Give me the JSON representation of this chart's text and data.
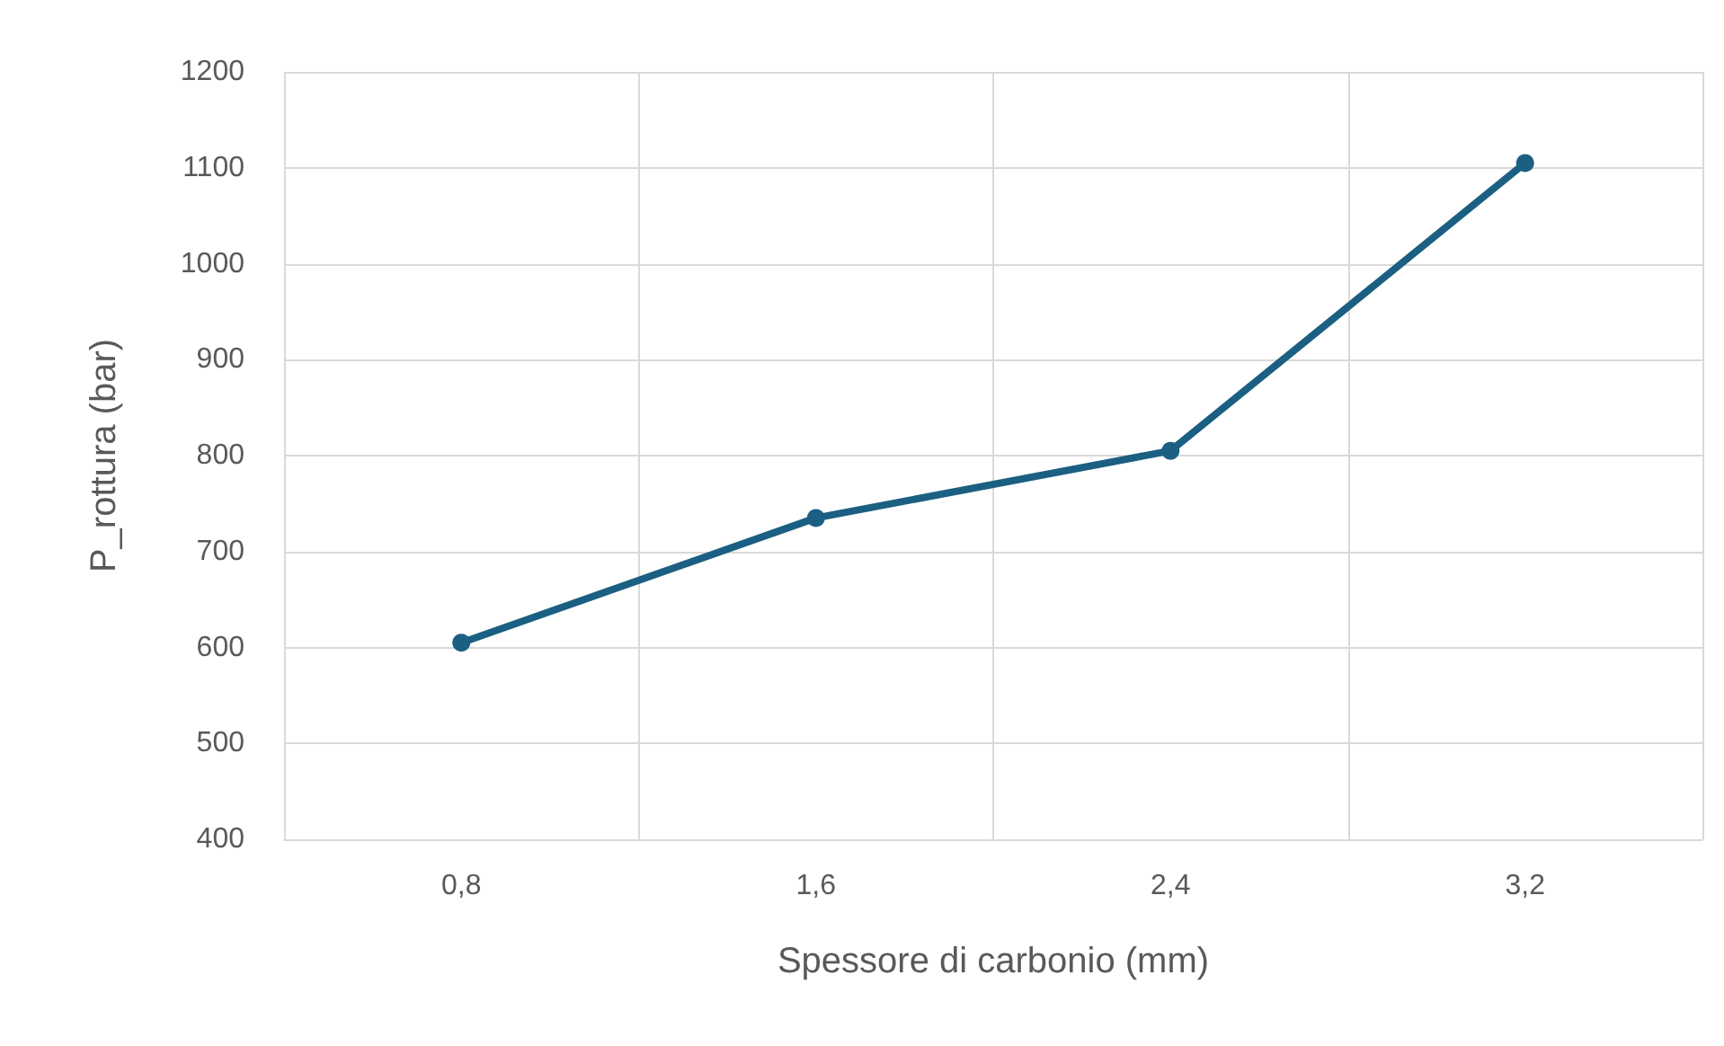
{
  "chart_data": {
    "type": "line",
    "xlabel": "Spessore di carbonio (mm)",
    "ylabel": "P_rottura (bar)",
    "categories": [
      "0,8",
      "1,6",
      "2,4",
      "3,2"
    ],
    "series": [
      {
        "color": "#1b5f82",
        "values": [
          605,
          735,
          805,
          1105
        ]
      }
    ],
    "ylim": [
      400,
      1200
    ],
    "yticks": [
      400,
      500,
      600,
      700,
      800,
      900,
      1000,
      1100,
      1200
    ],
    "grid": true,
    "marker": "circle",
    "line_style": "solid"
  }
}
